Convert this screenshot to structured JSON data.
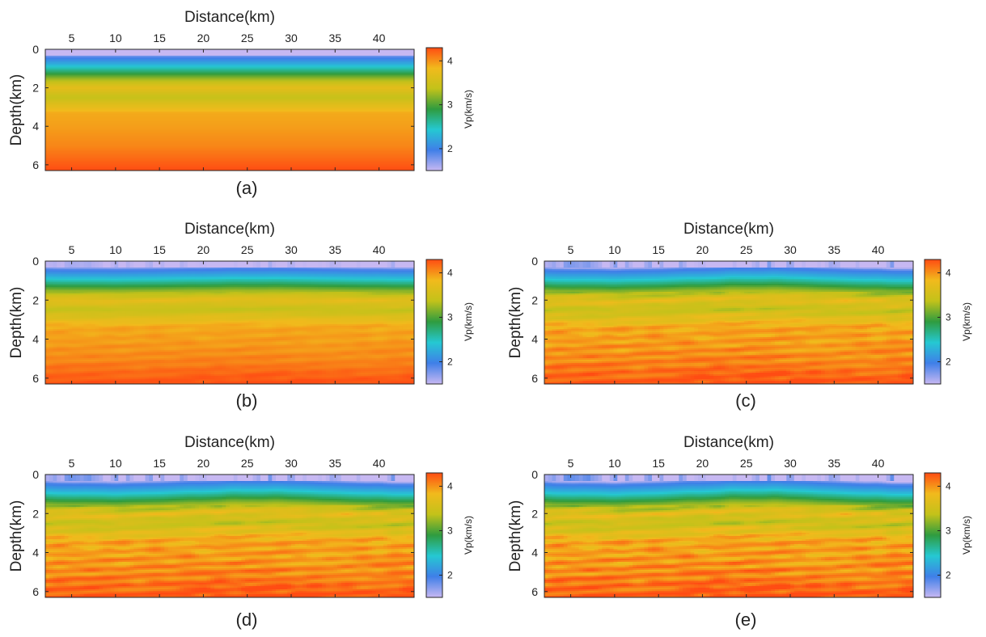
{
  "colorbar": {
    "label": "Vp(km/s)",
    "ticks": [
      2,
      3,
      4
    ],
    "range": [
      1.5,
      4.3
    ],
    "colormap": [
      "#c7b8f2",
      "#3f7fe8",
      "#25c8d2",
      "#2f9c3f",
      "#c3c21a",
      "#f1ba1c",
      "#ff4c13"
    ]
  },
  "chart_data": [
    {
      "type": "heatmap",
      "panel_label": "(a)",
      "xlabel": "Distance(km)",
      "ylabel": "Depth(km)",
      "xticks": [
        5,
        10,
        15,
        20,
        25,
        30,
        35,
        40
      ],
      "yticks": [
        0,
        2,
        4,
        6
      ],
      "xlim": [
        2,
        44
      ],
      "ylim": [
        6.3,
        0
      ],
      "velocity_profile": [
        {
          "depth": 0,
          "vp": 1.5
        },
        {
          "depth": 0.25,
          "vp": 1.5
        },
        {
          "depth": 0.4,
          "vp": 1.9
        },
        {
          "depth": 0.8,
          "vp": 2.3
        },
        {
          "depth": 1.2,
          "vp": 2.8
        },
        {
          "depth": 1.5,
          "vp": 3.2
        },
        {
          "depth": 2.0,
          "vp": 3.7
        },
        {
          "depth": 2.5,
          "vp": 3.4
        },
        {
          "depth": 2.8,
          "vp": 3.6
        },
        {
          "depth": 3.3,
          "vp": 3.9
        },
        {
          "depth": 4.0,
          "vp": 3.95
        },
        {
          "depth": 5.0,
          "vp": 4.05
        },
        {
          "depth": 5.8,
          "vp": 4.2
        },
        {
          "depth": 6.3,
          "vp": 4.3
        }
      ],
      "texture": 0
    },
    {
      "type": "heatmap",
      "panel_label": "(b)",
      "xlabel": "Distance(km)",
      "ylabel": "Depth(km)",
      "xticks": [
        5,
        10,
        15,
        20,
        25,
        30,
        35,
        40
      ],
      "yticks": [
        0,
        2,
        4,
        6
      ],
      "xlim": [
        2,
        44
      ],
      "ylim": [
        6.3,
        0
      ],
      "velocity_profile": [
        {
          "depth": 0,
          "vp": 1.5
        },
        {
          "depth": 0.25,
          "vp": 1.5
        },
        {
          "depth": 0.4,
          "vp": 1.9
        },
        {
          "depth": 0.8,
          "vp": 2.3
        },
        {
          "depth": 1.2,
          "vp": 2.8
        },
        {
          "depth": 1.5,
          "vp": 3.2
        },
        {
          "depth": 2.0,
          "vp": 3.7
        },
        {
          "depth": 2.5,
          "vp": 3.4
        },
        {
          "depth": 2.8,
          "vp": 3.6
        },
        {
          "depth": 3.3,
          "vp": 3.9
        },
        {
          "depth": 4.0,
          "vp": 3.95
        },
        {
          "depth": 5.0,
          "vp": 4.05
        },
        {
          "depth": 5.8,
          "vp": 4.2
        },
        {
          "depth": 6.3,
          "vp": 4.3
        }
      ],
      "texture": 0.3
    },
    {
      "type": "heatmap",
      "panel_label": "(c)",
      "xlabel": "Distance(km)",
      "ylabel": "Depth(km)",
      "xticks": [
        5,
        10,
        15,
        20,
        25,
        30,
        35,
        40
      ],
      "yticks": [
        0,
        2,
        4,
        6
      ],
      "xlim": [
        2,
        44
      ],
      "ylim": [
        6.3,
        0
      ],
      "velocity_profile": [
        {
          "depth": 0,
          "vp": 1.5
        },
        {
          "depth": 0.25,
          "vp": 1.5
        },
        {
          "depth": 0.4,
          "vp": 1.9
        },
        {
          "depth": 0.8,
          "vp": 2.3
        },
        {
          "depth": 1.2,
          "vp": 2.8
        },
        {
          "depth": 1.5,
          "vp": 3.2
        },
        {
          "depth": 2.0,
          "vp": 3.7
        },
        {
          "depth": 2.5,
          "vp": 3.4
        },
        {
          "depth": 2.8,
          "vp": 3.6
        },
        {
          "depth": 3.3,
          "vp": 3.9
        },
        {
          "depth": 4.0,
          "vp": 3.95
        },
        {
          "depth": 5.0,
          "vp": 4.05
        },
        {
          "depth": 5.8,
          "vp": 4.2
        },
        {
          "depth": 6.3,
          "vp": 4.3
        }
      ],
      "texture": 0.7
    },
    {
      "type": "heatmap",
      "panel_label": "(d)",
      "xlabel": "Distance(km)",
      "ylabel": "Depth(km)",
      "xticks": [
        5,
        10,
        15,
        20,
        25,
        30,
        35,
        40
      ],
      "yticks": [
        0,
        2,
        4,
        6
      ],
      "xlim": [
        2,
        44
      ],
      "ylim": [
        6.3,
        0
      ],
      "velocity_profile": [
        {
          "depth": 0,
          "vp": 1.5
        },
        {
          "depth": 0.25,
          "vp": 1.5
        },
        {
          "depth": 0.4,
          "vp": 1.9
        },
        {
          "depth": 0.8,
          "vp": 2.3
        },
        {
          "depth": 1.2,
          "vp": 2.8
        },
        {
          "depth": 1.5,
          "vp": 3.2
        },
        {
          "depth": 2.0,
          "vp": 3.7
        },
        {
          "depth": 2.5,
          "vp": 3.4
        },
        {
          "depth": 2.8,
          "vp": 3.6
        },
        {
          "depth": 3.3,
          "vp": 3.9
        },
        {
          "depth": 4.0,
          "vp": 3.95
        },
        {
          "depth": 5.0,
          "vp": 4.05
        },
        {
          "depth": 5.8,
          "vp": 4.2
        },
        {
          "depth": 6.3,
          "vp": 4.3
        }
      ],
      "texture": 0.85
    },
    {
      "type": "heatmap",
      "panel_label": "(e)",
      "xlabel": "Distance(km)",
      "ylabel": "Depth(km)",
      "xticks": [
        5,
        10,
        15,
        20,
        25,
        30,
        35,
        40
      ],
      "yticks": [
        0,
        2,
        4,
        6
      ],
      "xlim": [
        2,
        44
      ],
      "ylim": [
        6.3,
        0
      ],
      "velocity_profile": [
        {
          "depth": 0,
          "vp": 1.5
        },
        {
          "depth": 0.25,
          "vp": 1.5
        },
        {
          "depth": 0.4,
          "vp": 1.9
        },
        {
          "depth": 0.8,
          "vp": 2.3
        },
        {
          "depth": 1.2,
          "vp": 2.8
        },
        {
          "depth": 1.5,
          "vp": 3.2
        },
        {
          "depth": 2.0,
          "vp": 3.7
        },
        {
          "depth": 2.5,
          "vp": 3.4
        },
        {
          "depth": 2.8,
          "vp": 3.6
        },
        {
          "depth": 3.3,
          "vp": 3.9
        },
        {
          "depth": 4.0,
          "vp": 3.95
        },
        {
          "depth": 5.0,
          "vp": 4.05
        },
        {
          "depth": 5.8,
          "vp": 4.2
        },
        {
          "depth": 6.3,
          "vp": 4.3
        }
      ],
      "texture": 1.0
    }
  ]
}
